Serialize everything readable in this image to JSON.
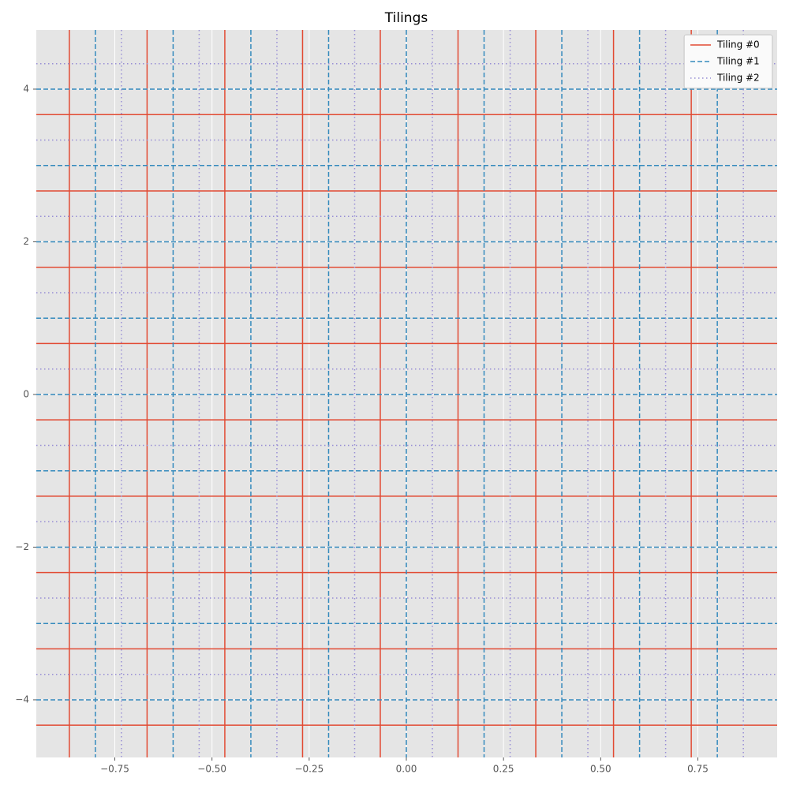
{
  "chart_data": {
    "type": "tiling",
    "title": "Tilings",
    "xlim": [
      -0.952,
      0.954
    ],
    "ylim": [
      -4.755,
      4.775
    ],
    "xticks": [
      {
        "value": -0.75,
        "label": "−0.75"
      },
      {
        "value": -0.5,
        "label": "−0.50"
      },
      {
        "value": -0.25,
        "label": "−0.25"
      },
      {
        "value": 0,
        "label": "0.00"
      },
      {
        "value": 0.25,
        "label": "0.25"
      },
      {
        "value": 0.5,
        "label": "0.50"
      },
      {
        "value": 0.75,
        "label": "0.75"
      }
    ],
    "yticks": [
      {
        "value": -4,
        "label": "−4"
      },
      {
        "value": -2,
        "label": "−2"
      },
      0,
      2,
      4
    ],
    "grid": true,
    "legend": "upper right",
    "series": [
      {
        "name": "Tiling #0",
        "color": "#E24A33",
        "linestyle": "solid",
        "x": [
          -0.867,
          -0.667,
          -0.467,
          -0.267,
          -0.067,
          0.133,
          0.333,
          0.533,
          0.733
        ],
        "values": [
          3.667,
          2.667,
          1.667,
          0.667,
          -0.333,
          -1.333,
          -2.333,
          -3.333,
          -4.333
        ]
      },
      {
        "name": "Tiling #1",
        "color": "#348ABD",
        "linestyle": "dashed",
        "x": [
          -0.8,
          -0.6,
          -0.4,
          -0.2,
          0,
          0.2,
          0.4,
          0.6,
          0.8
        ],
        "values": [
          4,
          3,
          2,
          1,
          0,
          -1,
          -2,
          -3,
          -4
        ]
      },
      {
        "name": "Tiling #2",
        "color": "#988ED5",
        "linestyle": "dotted",
        "x": [
          -0.733,
          -0.533,
          -0.333,
          -0.133,
          0.067,
          0.267,
          0.467,
          0.667,
          0.867
        ],
        "values": [
          4.333,
          3.333,
          2.333,
          1.333,
          0.333,
          -0.667,
          -1.667,
          -2.667,
          -3.667
        ]
      }
    ]
  }
}
